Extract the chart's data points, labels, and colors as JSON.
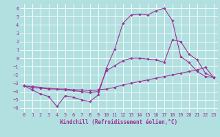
{
  "background_color": "#b2e0e0",
  "grid_color": "#ffffff",
  "line_color": "#993399",
  "marker_color": "#993399",
  "xlabel": "Windchill (Refroidissement éolien,°C)",
  "xlim": [
    -0.5,
    23.5
  ],
  "ylim": [
    -6.5,
    6.5
  ],
  "xticks": [
    0,
    1,
    2,
    3,
    4,
    5,
    6,
    7,
    8,
    9,
    10,
    11,
    12,
    13,
    14,
    15,
    16,
    17,
    18,
    19,
    20,
    21,
    22,
    23
  ],
  "yticks": [
    -6,
    -5,
    -4,
    -3,
    -2,
    -1,
    0,
    1,
    2,
    3,
    4,
    5,
    6
  ],
  "line1_x": [
    0,
    1,
    2,
    3,
    4,
    5,
    6,
    7,
    8,
    9,
    10,
    11,
    12,
    13,
    14,
    15,
    16,
    17,
    18,
    19,
    20,
    21,
    22,
    23
  ],
  "line1_y": [
    -3.3,
    -3.8,
    -4.3,
    -4.6,
    -5.8,
    -4.5,
    -4.7,
    -5.0,
    -5.2,
    -4.4,
    -1.2,
    1.1,
    4.2,
    5.2,
    5.3,
    5.2,
    5.7,
    6.0,
    4.5,
    0.2,
    -0.5,
    -1.6,
    -2.2,
    -2.3
  ],
  "line2_x": [
    0,
    1,
    2,
    3,
    4,
    5,
    6,
    7,
    8,
    9,
    10,
    11,
    12,
    13,
    14,
    15,
    16,
    17,
    18,
    19,
    20,
    21,
    22,
    23
  ],
  "line2_y": [
    -3.3,
    -3.5,
    -3.6,
    -3.7,
    -3.7,
    -3.8,
    -3.9,
    -4.0,
    -4.1,
    -4.0,
    -1.5,
    -0.9,
    -0.3,
    0.0,
    0.0,
    -0.1,
    -0.2,
    -0.5,
    2.2,
    2.0,
    0.5,
    -0.2,
    -1.8,
    -2.3
  ],
  "line3_x": [
    0,
    1,
    2,
    3,
    4,
    5,
    6,
    7,
    8,
    9,
    10,
    11,
    12,
    13,
    14,
    15,
    16,
    17,
    18,
    19,
    20,
    21,
    22,
    23
  ],
  "line3_y": [
    -3.3,
    -3.4,
    -3.5,
    -3.6,
    -3.7,
    -3.7,
    -3.8,
    -3.8,
    -3.9,
    -3.8,
    -3.7,
    -3.5,
    -3.2,
    -3.0,
    -2.8,
    -2.6,
    -2.4,
    -2.2,
    -2.0,
    -1.8,
    -1.6,
    -1.4,
    -1.1,
    -2.3
  ],
  "font_color": "#993399",
  "font_family": "monospace",
  "font_size_label": 5.5,
  "font_size_tick": 5,
  "linewidth": 0.8,
  "markersize": 1.8
}
